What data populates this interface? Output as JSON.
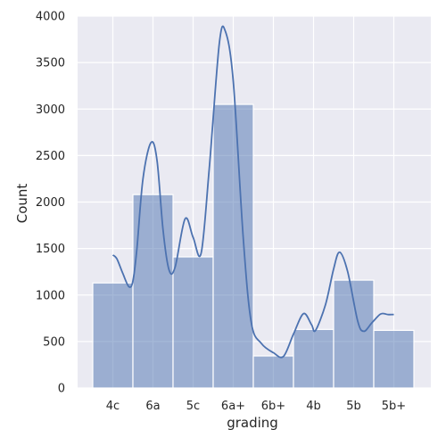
{
  "chart_data": {
    "type": "bar",
    "title": "",
    "xlabel": "grading",
    "ylabel": "Count",
    "categories": [
      "4c",
      "6a",
      "5c",
      "6a+",
      "6b+",
      "4b",
      "5b",
      "5b+"
    ],
    "values": [
      1130,
      2080,
      1410,
      3050,
      345,
      630,
      1160,
      620
    ],
    "ylim": [
      0,
      4000
    ],
    "yticks": [
      0,
      500,
      1000,
      1500,
      2000,
      2500,
      3000,
      3500,
      4000
    ],
    "grid": true,
    "kde_overlay": true,
    "colors": {
      "plot_background": "#eaeaf2",
      "grid": "#ffffff",
      "bar_fill": "#4c72b0",
      "bar_opacity": 0.5,
      "line": "#4c72b0"
    }
  }
}
